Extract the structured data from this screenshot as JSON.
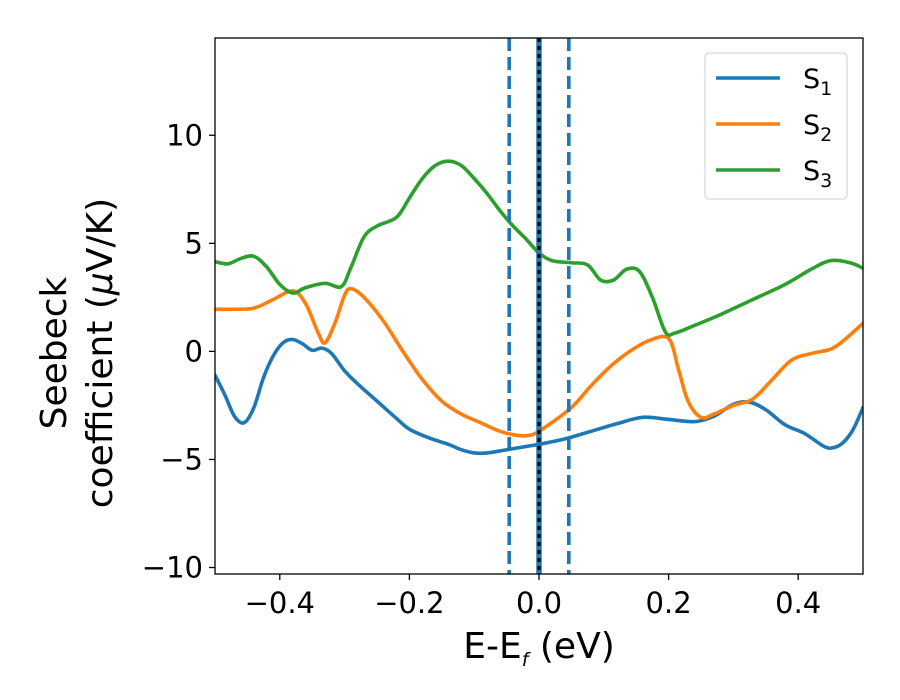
{
  "chart_data": {
    "type": "line",
    "xlabel": "E-E",
    "xlabel_sub": "f",
    "xlabel_unit": " (eV)",
    "ylabel_line1": "Seebeck",
    "ylabel_line2": "coefficient  (",
    "ylabel_mu": "μ",
    "ylabel_unit": "V/K)",
    "xlim": [
      -0.5,
      0.5
    ],
    "ylim": [
      -10.3,
      14.5
    ],
    "x_ticks": [
      -0.4,
      -0.2,
      0.0,
      0.2,
      0.4
    ],
    "x_tick_labels": [
      "−0.4",
      "−0.2",
      "0.0",
      "0.2",
      "0.4"
    ],
    "y_ticks": [
      -10,
      -5,
      0,
      5,
      10
    ],
    "y_tick_labels": [
      "−10",
      "−5",
      "0",
      "5",
      "10"
    ],
    "grid": false,
    "legend_position": "top-right",
    "vlines": [
      {
        "x": -0.046,
        "style": "dashed",
        "color": "#1f77b4"
      },
      {
        "x": 0.046,
        "style": "dashed",
        "color": "#1f77b4"
      },
      {
        "x": 0.0,
        "style": "solid",
        "color": "#1f77b4"
      },
      {
        "x": 0.0,
        "style": "dotted",
        "color": "#000000"
      }
    ],
    "series": [
      {
        "name": "S",
        "sub": "1",
        "color": "#1f77b4",
        "points": [
          [
            -0.5,
            -1.1
          ],
          [
            -0.485,
            -2.0
          ],
          [
            -0.47,
            -3.0
          ],
          [
            -0.455,
            -3.3
          ],
          [
            -0.44,
            -2.6
          ],
          [
            -0.425,
            -1.2
          ],
          [
            -0.41,
            -0.2
          ],
          [
            -0.395,
            0.4
          ],
          [
            -0.38,
            0.55
          ],
          [
            -0.365,
            0.35
          ],
          [
            -0.35,
            0.05
          ],
          [
            -0.335,
            0.15
          ],
          [
            -0.32,
            -0.1
          ],
          [
            -0.3,
            -0.9
          ],
          [
            -0.28,
            -1.5
          ],
          [
            -0.25,
            -2.3
          ],
          [
            -0.22,
            -3.1
          ],
          [
            -0.2,
            -3.6
          ],
          [
            -0.17,
            -4.0
          ],
          [
            -0.14,
            -4.3
          ],
          [
            -0.12,
            -4.55
          ],
          [
            -0.1,
            -4.7
          ],
          [
            -0.08,
            -4.7
          ],
          [
            -0.05,
            -4.55
          ],
          [
            -0.02,
            -4.4
          ],
          [
            0.0,
            -4.3
          ],
          [
            0.04,
            -4.05
          ],
          [
            0.08,
            -3.7
          ],
          [
            0.12,
            -3.35
          ],
          [
            0.16,
            -3.05
          ],
          [
            0.2,
            -3.15
          ],
          [
            0.24,
            -3.25
          ],
          [
            0.27,
            -3.0
          ],
          [
            0.3,
            -2.45
          ],
          [
            0.325,
            -2.35
          ],
          [
            0.35,
            -2.7
          ],
          [
            0.38,
            -3.4
          ],
          [
            0.41,
            -3.8
          ],
          [
            0.44,
            -4.4
          ],
          [
            0.455,
            -4.45
          ],
          [
            0.47,
            -4.2
          ],
          [
            0.485,
            -3.6
          ],
          [
            0.5,
            -2.6
          ]
        ]
      },
      {
        "name": "S",
        "sub": "2",
        "color": "#ff7f0e",
        "points": [
          [
            -0.5,
            1.95
          ],
          [
            -0.47,
            1.95
          ],
          [
            -0.44,
            2.0
          ],
          [
            -0.41,
            2.4
          ],
          [
            -0.38,
            2.8
          ],
          [
            -0.36,
            2.2
          ],
          [
            -0.34,
            0.8
          ],
          [
            -0.33,
            0.4
          ],
          [
            -0.315,
            1.3
          ],
          [
            -0.3,
            2.6
          ],
          [
            -0.29,
            2.9
          ],
          [
            -0.27,
            2.5
          ],
          [
            -0.24,
            1.4
          ],
          [
            -0.21,
            0.0
          ],
          [
            -0.18,
            -1.3
          ],
          [
            -0.15,
            -2.3
          ],
          [
            -0.12,
            -2.9
          ],
          [
            -0.09,
            -3.3
          ],
          [
            -0.06,
            -3.7
          ],
          [
            -0.03,
            -3.9
          ],
          [
            -0.01,
            -3.85
          ],
          [
            0.01,
            -3.5
          ],
          [
            0.05,
            -2.6
          ],
          [
            0.08,
            -1.6
          ],
          [
            0.11,
            -0.7
          ],
          [
            0.14,
            0.0
          ],
          [
            0.17,
            0.5
          ],
          [
            0.2,
            0.6
          ],
          [
            0.215,
            -0.8
          ],
          [
            0.23,
            -2.3
          ],
          [
            0.25,
            -3.05
          ],
          [
            0.27,
            -2.9
          ],
          [
            0.3,
            -2.5
          ],
          [
            0.33,
            -2.2
          ],
          [
            0.36,
            -1.3
          ],
          [
            0.39,
            -0.4
          ],
          [
            0.42,
            -0.1
          ],
          [
            0.45,
            0.1
          ],
          [
            0.47,
            0.5
          ],
          [
            0.5,
            1.3
          ]
        ]
      },
      {
        "name": "S",
        "sub": "3",
        "color": "#2ca02c",
        "points": [
          [
            -0.5,
            4.15
          ],
          [
            -0.48,
            4.05
          ],
          [
            -0.46,
            4.3
          ],
          [
            -0.44,
            4.4
          ],
          [
            -0.42,
            3.9
          ],
          [
            -0.4,
            3.1
          ],
          [
            -0.38,
            2.7
          ],
          [
            -0.36,
            2.95
          ],
          [
            -0.33,
            3.15
          ],
          [
            -0.305,
            3.0
          ],
          [
            -0.29,
            3.9
          ],
          [
            -0.27,
            5.3
          ],
          [
            -0.25,
            5.8
          ],
          [
            -0.22,
            6.2
          ],
          [
            -0.2,
            7.1
          ],
          [
            -0.18,
            8.0
          ],
          [
            -0.16,
            8.6
          ],
          [
            -0.14,
            8.8
          ],
          [
            -0.12,
            8.6
          ],
          [
            -0.1,
            8.0
          ],
          [
            -0.08,
            7.3
          ],
          [
            -0.06,
            6.5
          ],
          [
            -0.04,
            5.8
          ],
          [
            -0.02,
            5.2
          ],
          [
            0.0,
            4.55
          ],
          [
            0.02,
            4.2
          ],
          [
            0.05,
            4.1
          ],
          [
            0.075,
            4.0
          ],
          [
            0.095,
            3.3
          ],
          [
            0.115,
            3.3
          ],
          [
            0.135,
            3.8
          ],
          [
            0.155,
            3.7
          ],
          [
            0.175,
            2.5
          ],
          [
            0.195,
            0.9
          ],
          [
            0.21,
            0.85
          ],
          [
            0.24,
            1.2
          ],
          [
            0.28,
            1.7
          ],
          [
            0.33,
            2.4
          ],
          [
            0.38,
            3.1
          ],
          [
            0.42,
            3.8
          ],
          [
            0.45,
            4.2
          ],
          [
            0.48,
            4.1
          ],
          [
            0.5,
            3.85
          ]
        ]
      }
    ]
  }
}
